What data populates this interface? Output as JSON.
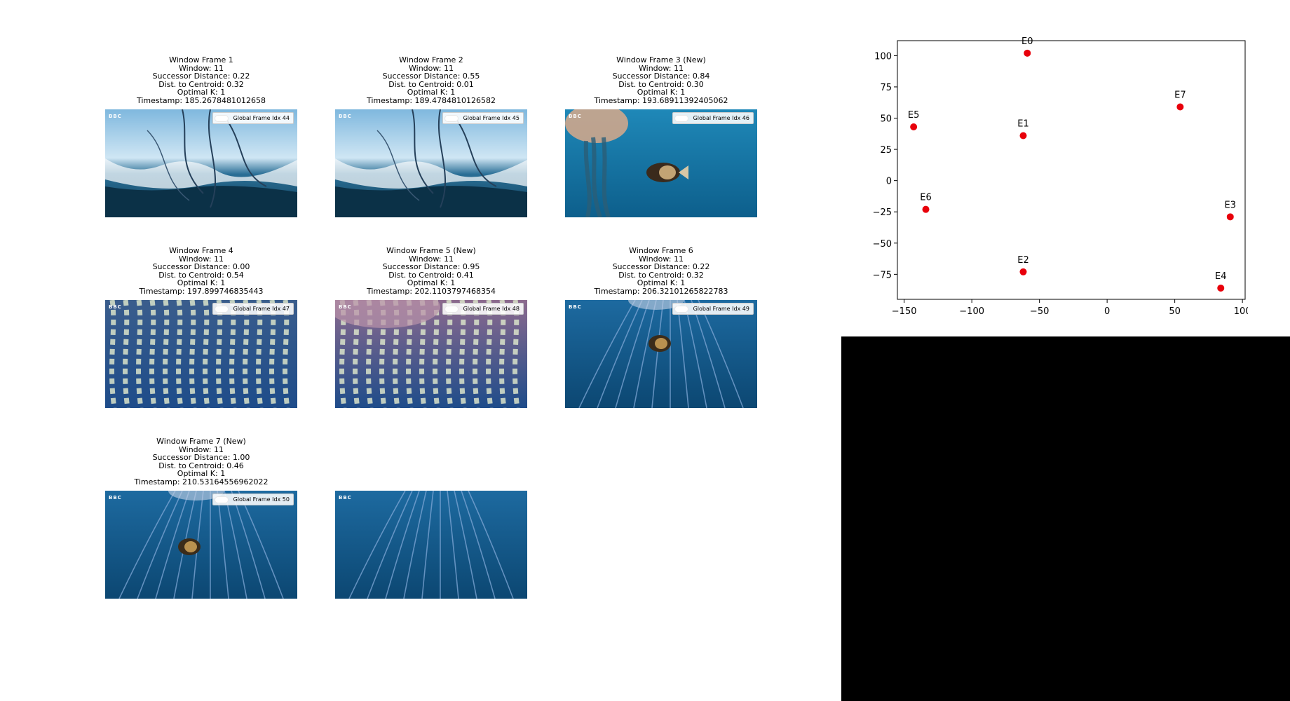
{
  "frames": [
    {
      "title": "Window Frame 1",
      "window": "Window: 11",
      "successor": "Successor Distance: 0.22",
      "centroid": "Dist. to Centroid: 0.32",
      "optimal_k": "Optimal K: 1",
      "timestamp": "Timestamp: 185.2678481012658",
      "legend": "Global Frame Idx 44",
      "logo": "BBC",
      "scene": "surface"
    },
    {
      "title": "Window Frame 2",
      "window": "Window: 11",
      "successor": "Successor Distance: 0.55",
      "centroid": "Dist. to Centroid: 0.01",
      "optimal_k": "Optimal K: 1",
      "timestamp": "Timestamp: 189.4784810126582",
      "legend": "Global Frame Idx 45",
      "logo": "BBC",
      "scene": "surface"
    },
    {
      "title": "Window Frame 3 (New)",
      "window": "Window: 11",
      "successor": "Successor Distance: 0.84",
      "centroid": "Dist. to Centroid: 0.30",
      "optimal_k": "Optimal K: 1",
      "timestamp": "Timestamp: 193.68911392405062",
      "legend": "Global Frame Idx 46",
      "logo": "BBC",
      "scene": "jellyfish_fish"
    },
    {
      "title": "Window Frame 4",
      "window": "Window: 11",
      "successor": "Successor Distance: 0.00",
      "centroid": "Dist. to Centroid: 0.54",
      "optimal_k": "Optimal K: 1",
      "timestamp": "Timestamp: 197.899746835443",
      "legend": "Global Frame Idx 47",
      "logo": "BBC",
      "scene": "tentacles"
    },
    {
      "title": "Window Frame 5 (New)",
      "window": "Window: 11",
      "successor": "Successor Distance: 0.95",
      "centroid": "Dist. to Centroid: 0.41",
      "optimal_k": "Optimal K: 1",
      "timestamp": "Timestamp: 202.1103797468354",
      "legend": "Global Frame Idx 48",
      "logo": "BBC",
      "scene": "tentacles_pink"
    },
    {
      "title": "Window Frame 6",
      "window": "Window: 11",
      "successor": "Successor Distance: 0.22",
      "centroid": "Dist. to Centroid: 0.32",
      "optimal_k": "Optimal K: 1",
      "timestamp": "Timestamp: 206.32101265822783",
      "legend": "Global Frame Idx 49",
      "logo": "BBC",
      "scene": "deep_fish"
    },
    {
      "title": "Window Frame 7 (New)",
      "window": "Window: 11",
      "successor": "Successor Distance: 1.00",
      "centroid": "Dist. to Centroid: 0.46",
      "optimal_k": "Optimal K: 1",
      "timestamp": "Timestamp: 210.53164556962022",
      "legend": "Global Frame Idx 50",
      "logo": "BBC",
      "scene": "deep_fish2"
    },
    {
      "title": "",
      "window": "",
      "successor": "",
      "centroid": "",
      "optimal_k": "",
      "timestamp": "",
      "legend": "",
      "logo": "BBC",
      "scene": "deep_empty"
    }
  ],
  "chart_data": {
    "type": "scatter",
    "title": "",
    "xlabel": "",
    "ylabel": "",
    "xlim": [
      -155,
      102
    ],
    "ylim": [
      -95,
      112
    ],
    "xticks": [
      -150,
      -100,
      -50,
      0,
      50,
      100
    ],
    "yticks": [
      -75,
      -50,
      -25,
      0,
      25,
      50,
      75,
      100
    ],
    "xtick_labels": [
      "−150",
      "−100",
      "−50",
      "0",
      "50",
      "100"
    ],
    "ytick_labels": [
      "−75",
      "−50",
      "−25",
      "0",
      "25",
      "50",
      "75",
      "100"
    ],
    "grid": false,
    "point_color": "#e8000b",
    "points": [
      {
        "label": "E0",
        "x": -59,
        "y": 102
      },
      {
        "label": "E1",
        "x": -62,
        "y": 36
      },
      {
        "label": "E2",
        "x": -62,
        "y": -73
      },
      {
        "label": "E3",
        "x": 91,
        "y": -29
      },
      {
        "label": "E4",
        "x": 84,
        "y": -86
      },
      {
        "label": "E5",
        "x": -143,
        "y": 43
      },
      {
        "label": "E6",
        "x": -134,
        "y": -23
      },
      {
        "label": "E7",
        "x": 54,
        "y": 59
      }
    ]
  }
}
